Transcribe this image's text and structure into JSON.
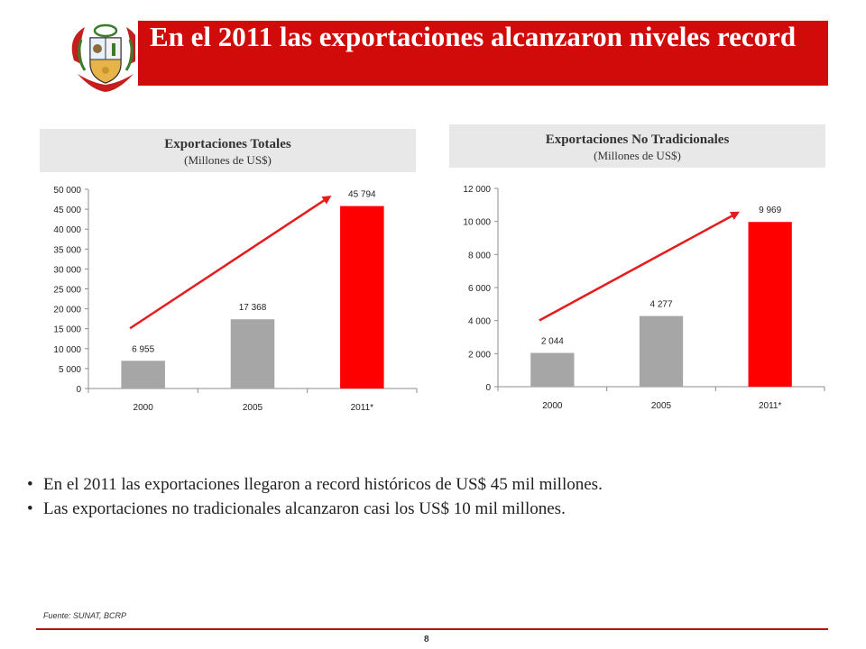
{
  "slide": {
    "title": "En el 2011 las exportaciones alcanzaron niveles record",
    "source": "Fuente: SUNAT, BCRP",
    "page_number": "8",
    "accent_color": "#d10a0a"
  },
  "bullets": [
    "En el 2011 las exportaciones llegaron a record históricos de US$ 45 mil millones.",
    "Las exportaciones no tradicionales alcanzaron casi los US$ 10 mil millones."
  ],
  "chart_data": [
    {
      "type": "bar",
      "title": "Exportaciones Totales",
      "subtitle": "(Millones de US$)",
      "categories": [
        "2000",
        "2005",
        "2011*"
      ],
      "values": [
        6955,
        17368,
        45794
      ],
      "value_labels": [
        "6 955",
        "17 368",
        "45 794"
      ],
      "bar_colors": [
        "#a6a6a6",
        "#a6a6a6",
        "#ff0000"
      ],
      "ylim": [
        0,
        50000
      ],
      "yticks": [
        0,
        5000,
        10000,
        15000,
        20000,
        25000,
        30000,
        35000,
        40000,
        45000,
        50000
      ],
      "ytick_labels": [
        "0",
        "5 000",
        "10 000",
        "15 000",
        "20 000",
        "25 000",
        "30 000",
        "35 000",
        "40 000",
        "45 000",
        "50 000"
      ],
      "trend_arrow": true,
      "grid": false
    },
    {
      "type": "bar",
      "title": "Exportaciones No Tradicionales",
      "subtitle": "(Millones de US$)",
      "categories": [
        "2000",
        "2005",
        "2011*"
      ],
      "values": [
        2044,
        4277,
        9969
      ],
      "value_labels": [
        "2 044",
        "4 277",
        "9 969"
      ],
      "bar_colors": [
        "#a6a6a6",
        "#a6a6a6",
        "#ff0000"
      ],
      "ylim": [
        0,
        12000
      ],
      "yticks": [
        0,
        2000,
        4000,
        6000,
        8000,
        10000,
        12000
      ],
      "ytick_labels": [
        "0",
        "2 000",
        "4 000",
        "6 000",
        "8 000",
        "10 000",
        "12 000"
      ],
      "trend_arrow": true,
      "grid": false
    }
  ]
}
